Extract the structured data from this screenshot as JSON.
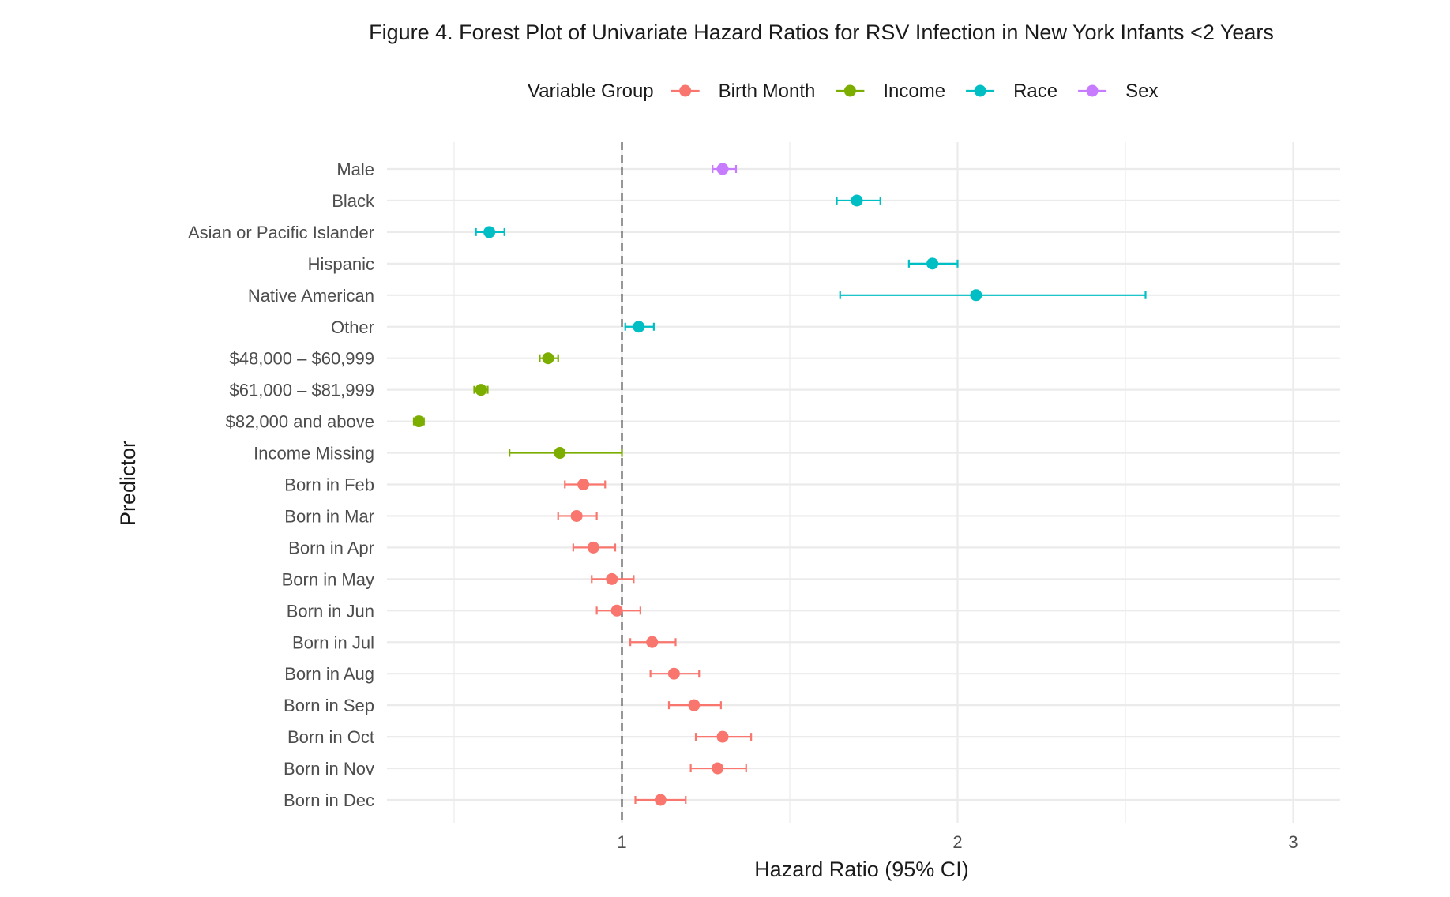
{
  "chart_data": {
    "type": "forest",
    "title": "Figure 4. Forest Plot of Univariate Hazard Ratios for RSV Infection in New York Infants <2 Years",
    "xlabel": "Hazard Ratio (95% CI)",
    "ylabel": "Predictor",
    "xlim": [
      0.3,
      3.14
    ],
    "x_ticks": [
      1,
      2,
      3
    ],
    "x_tick_labels": [
      "1",
      "2",
      "3"
    ],
    "reference_line": 1,
    "grid": true,
    "legend": {
      "title": "Variable Group",
      "position": "top",
      "groups": [
        {
          "name": "Birth Month",
          "color": "#F8766D"
        },
        {
          "name": "Income",
          "color": "#7CAE00"
        },
        {
          "name": "Race",
          "color": "#00BFC4"
        },
        {
          "name": "Sex",
          "color": "#C77CFF"
        }
      ]
    },
    "rows": [
      {
        "label": "Male",
        "group": "Sex",
        "hr": 1.3,
        "lo": 1.27,
        "hi": 1.34
      },
      {
        "label": "Black",
        "group": "Race",
        "hr": 1.7,
        "lo": 1.64,
        "hi": 1.77
      },
      {
        "label": "Asian or Pacific Islander",
        "group": "Race",
        "hr": 0.605,
        "lo": 0.565,
        "hi": 0.65
      },
      {
        "label": "Hispanic",
        "group": "Race",
        "hr": 1.925,
        "lo": 1.855,
        "hi": 2.0
      },
      {
        "label": "Native American",
        "group": "Race",
        "hr": 2.055,
        "lo": 1.65,
        "hi": 2.56
      },
      {
        "label": "Other",
        "group": "Race",
        "hr": 1.05,
        "lo": 1.01,
        "hi": 1.095
      },
      {
        "label": "$48,000 – $60,999",
        "group": "Income",
        "hr": 0.78,
        "lo": 0.755,
        "hi": 0.81
      },
      {
        "label": "$61,000 – $81,999",
        "group": "Income",
        "hr": 0.58,
        "lo": 0.56,
        "hi": 0.6
      },
      {
        "label": "$82,000 and above",
        "group": "Income",
        "hr": 0.395,
        "lo": 0.38,
        "hi": 0.41
      },
      {
        "label": "Income Missing",
        "group": "Income",
        "hr": 0.815,
        "lo": 0.665,
        "hi": 1.0
      },
      {
        "label": "Born in Feb",
        "group": "Birth Month",
        "hr": 0.885,
        "lo": 0.83,
        "hi": 0.95
      },
      {
        "label": "Born in Mar",
        "group": "Birth Month",
        "hr": 0.865,
        "lo": 0.81,
        "hi": 0.925
      },
      {
        "label": "Born in Apr",
        "group": "Birth Month",
        "hr": 0.915,
        "lo": 0.855,
        "hi": 0.98
      },
      {
        "label": "Born in May",
        "group": "Birth Month",
        "hr": 0.97,
        "lo": 0.91,
        "hi": 1.035
      },
      {
        "label": "Born in Jun",
        "group": "Birth Month",
        "hr": 0.985,
        "lo": 0.925,
        "hi": 1.055
      },
      {
        "label": "Born in Jul",
        "group": "Birth Month",
        "hr": 1.09,
        "lo": 1.025,
        "hi": 1.16
      },
      {
        "label": "Born in Aug",
        "group": "Birth Month",
        "hr": 1.155,
        "lo": 1.085,
        "hi": 1.23
      },
      {
        "label": "Born in Sep",
        "group": "Birth Month",
        "hr": 1.215,
        "lo": 1.14,
        "hi": 1.295
      },
      {
        "label": "Born in Oct",
        "group": "Birth Month",
        "hr": 1.3,
        "lo": 1.22,
        "hi": 1.385
      },
      {
        "label": "Born in Nov",
        "group": "Birth Month",
        "hr": 1.285,
        "lo": 1.205,
        "hi": 1.37
      },
      {
        "label": "Born in Dec",
        "group": "Birth Month",
        "hr": 1.115,
        "lo": 1.04,
        "hi": 1.19
      }
    ]
  }
}
